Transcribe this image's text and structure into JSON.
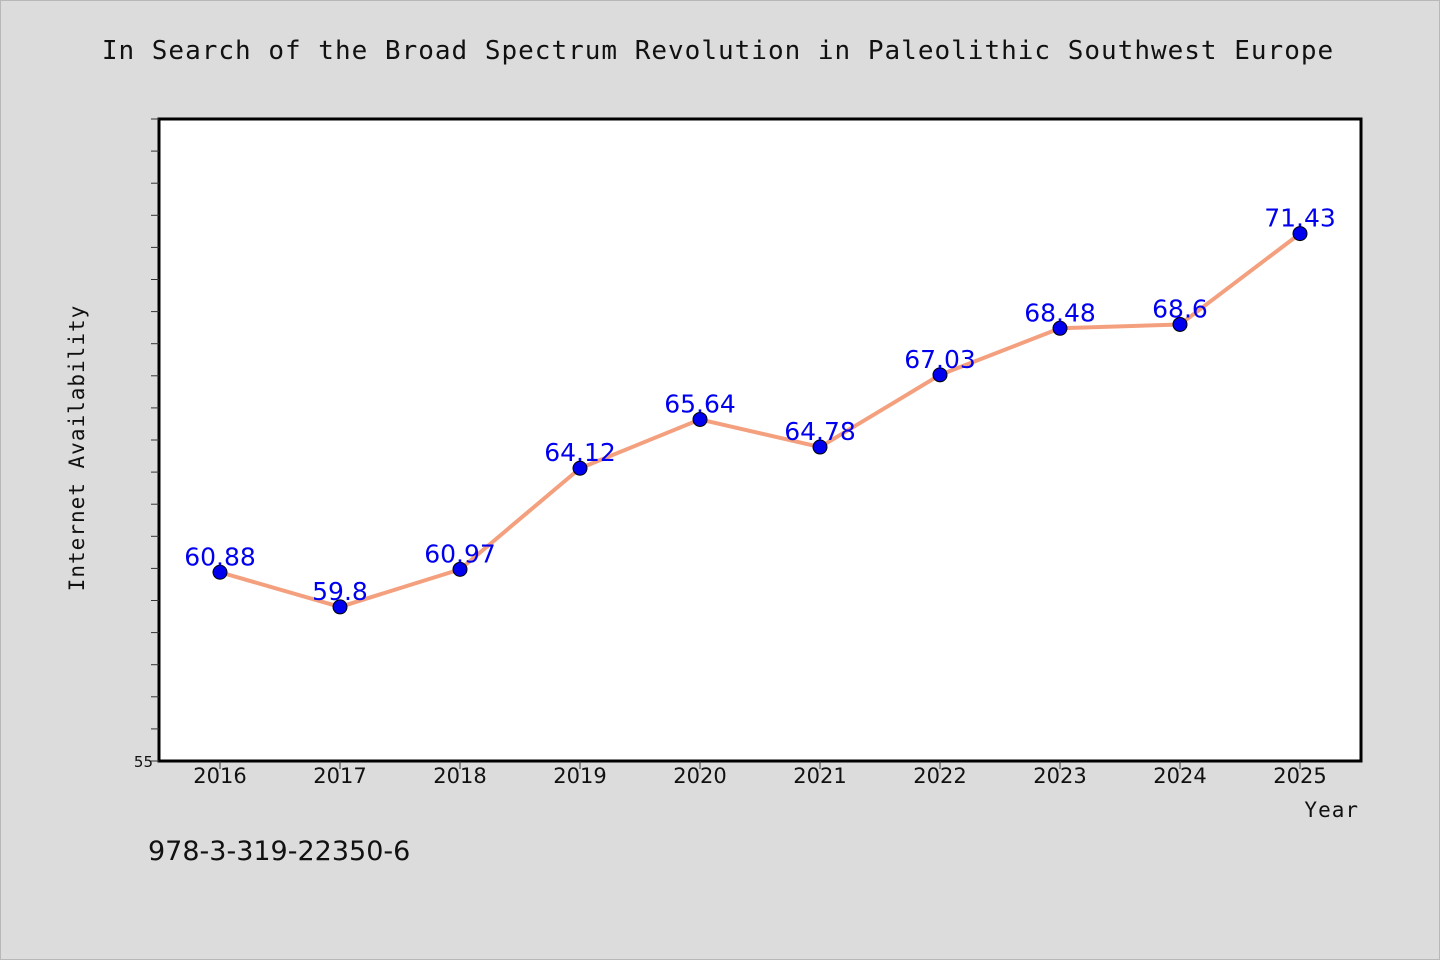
{
  "chart_data": {
    "type": "line",
    "title": "In Search of the Broad Spectrum Revolution in Paleolithic Southwest Europe",
    "xlabel": "Year",
    "ylabel": "Internet Availability",
    "categories": [
      "2016",
      "2017",
      "2018",
      "2019",
      "2020",
      "2021",
      "2022",
      "2023",
      "2024",
      "2025"
    ],
    "series": [
      {
        "values": [
          60.88,
          59.8,
          60.97,
          64.12,
          65.64,
          64.78,
          67.03,
          68.48,
          68.6,
          71.43
        ],
        "labels": [
          "60.88",
          "59.8",
          "60.97",
          "64.12",
          "65.64",
          "64.78",
          "67.03",
          "68.48",
          "68.6",
          "71.43"
        ]
      }
    ],
    "ylim": [
      55,
      75
    ],
    "ytick_labels": [
      "55"
    ],
    "grid": false,
    "legend": "none",
    "colors": {
      "line": "#f4a07e",
      "marker": "#0000ee",
      "label": "#0000ee"
    }
  },
  "caption": "978-3-319-22350-6"
}
